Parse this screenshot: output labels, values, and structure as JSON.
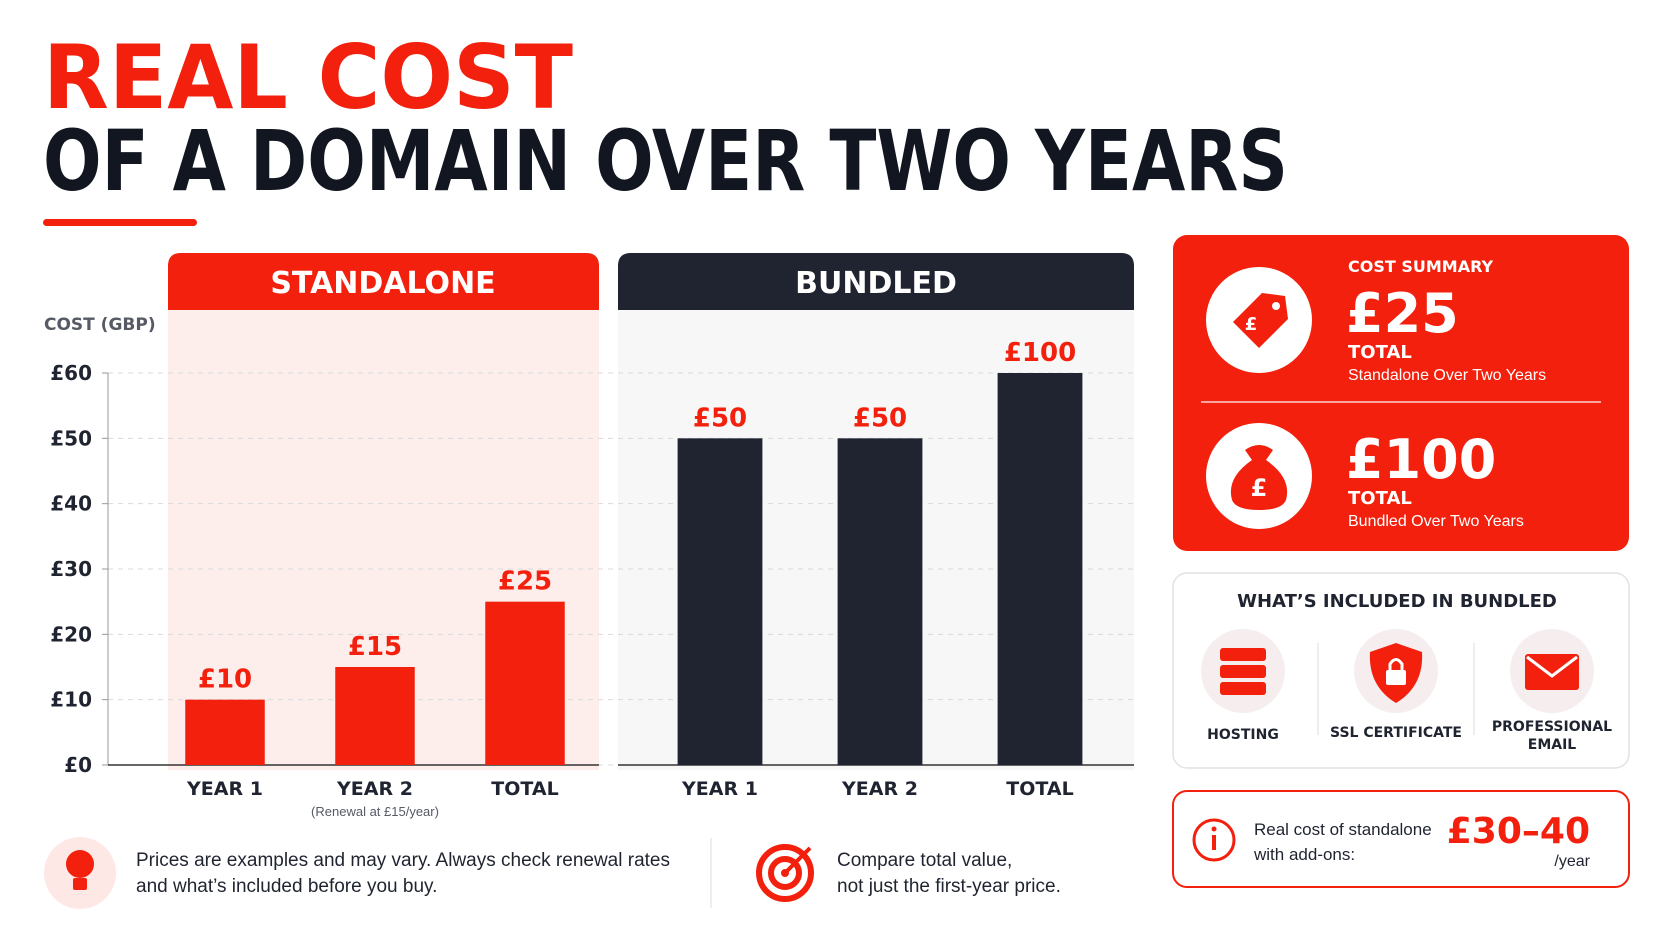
{
  "header": {
    "title_line1": "REAL COST",
    "title_line2": "OF A DOMAIN OVER TWO YEARS"
  },
  "chart_data": {
    "type": "bar",
    "y_axis_label": "COST (GBP)",
    "ylim": [
      0,
      60
    ],
    "yticks": [
      {
        "value": 0,
        "label": "£0"
      },
      {
        "value": 10,
        "label": "£10"
      },
      {
        "value": 20,
        "label": "£20"
      },
      {
        "value": 30,
        "label": "£30"
      },
      {
        "value": 40,
        "label": "£40"
      },
      {
        "value": 50,
        "label": "£50"
      },
      {
        "value": 60,
        "label": "£60"
      }
    ],
    "grid": true,
    "panels": [
      {
        "title": "STANDALONE",
        "color": "#f2200d",
        "categories": [
          "YEAR 1",
          "YEAR 2",
          "TOTAL"
        ],
        "values": [
          10,
          15,
          25
        ],
        "value_labels": [
          "£10",
          "£15",
          "£25"
        ],
        "annotation": "(Renewal at £15/year)"
      },
      {
        "title": "BUNDLED",
        "color": "#1f2430",
        "categories": [
          "YEAR 1",
          "YEAR 2",
          "TOTAL"
        ],
        "values": [
          50,
          50,
          100
        ],
        "value_labels": [
          "£50",
          "£50",
          "£100"
        ]
      }
    ]
  },
  "summary": {
    "title": "COST SUMMARY",
    "items": [
      {
        "amount": "£25",
        "label": "TOTAL",
        "detail": "Standalone Over Two Years"
      },
      {
        "amount": "£100",
        "label": "TOTAL",
        "detail": "Bundled Over Two Years"
      }
    ]
  },
  "included": {
    "title": "WHAT’S INCLUDED IN BUNDLED",
    "items": [
      "HOSTING",
      "SSL CERTIFICATE",
      "PROFESSIONAL",
      "EMAIL"
    ]
  },
  "addons": {
    "text_line1": "Real cost of standalone",
    "text_line2": "with add-ons:",
    "amount": "£30–40",
    "unit": "/year"
  },
  "notes": [
    {
      "line1": "Prices are examples and may vary. Always check renewal rates",
      "line2": "and what’s included before you buy."
    },
    {
      "line1": "Compare total value,",
      "line2": "not just the first-year price."
    }
  ]
}
